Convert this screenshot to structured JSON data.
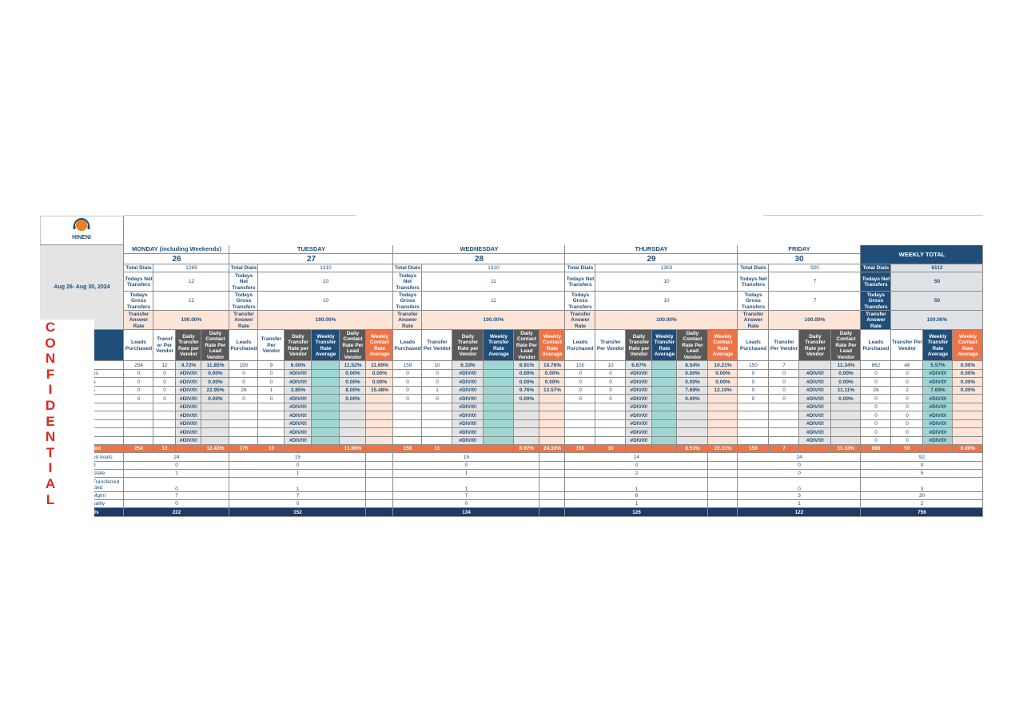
{
  "logo": "HINENI",
  "date_range": "Aug 26- Aug 30, 2024",
  "confidential": "CONFIDENTIAL",
  "metric_labels": [
    "Total Dials",
    "Todays Net Transfers",
    "Todays Gross Transfers",
    "Transfer Answer Rate"
  ],
  "row_labels": [
    null,
    "es",
    "a",
    "s",
    null,
    null,
    null,
    null,
    null,
    null
  ],
  "total_label": "unt",
  "summary_labels": [
    "ed leads",
    "d",
    "lstate",
    "Transferred cted",
    "Mgmt",
    "uality",
    "ds"
  ],
  "days": [
    {
      "name": "MONDAY (including Weekends)",
      "date": 26,
      "total_dials": 1269,
      "net_transfers": 12,
      "gross_transfers": 12,
      "answer_rate": "100.00%",
      "columns": [
        "Leads Purchased",
        "Transf er Per Vendor",
        "Daily Transfer Rate per Vendor",
        "Daily Contact Rate Per Lead Vendor"
      ],
      "rows": [
        [
          254,
          12,
          "4.72%",
          "11.85%"
        ],
        [
          0,
          0,
          "#DIV/0!",
          "0.00%"
        ],
        [
          0,
          0,
          "#DIV/0!",
          "0.00%"
        ],
        [
          0,
          0,
          "#DIV/0!",
          "22.95%"
        ],
        [
          0,
          0,
          "#DIV/0!",
          "0.00%"
        ],
        [
          null,
          null,
          "#DIV/0!",
          null
        ],
        [
          null,
          null,
          "#DIV/0!",
          null
        ],
        [
          null,
          null,
          "#DIV/0!",
          null
        ],
        [
          null,
          null,
          "#DIV/0!",
          null
        ],
        [
          null,
          null,
          "#DIV/0!",
          null
        ]
      ],
      "total": [
        254,
        12,
        null,
        "12.43%"
      ],
      "summary": [
        24,
        0,
        1,
        0,
        7,
        0,
        222
      ]
    },
    {
      "name": "TUESDAY",
      "date": 27,
      "total_dials": 1310,
      "net_transfers": 10,
      "gross_transfers": 10,
      "answer_rate": "100.00%",
      "columns": [
        "Leads Purchased",
        "Transfer Per Vendor",
        "Daily Transfer Rate per Vendor",
        "Weekly Transfer Rate Average",
        "Daily Contact Rate Per Lead Vendor",
        "Weekly Contact Rate Average"
      ],
      "rows": [
        [
          150,
          9,
          "6.00%",
          null,
          "11.52%",
          "11.69%"
        ],
        [
          0,
          0,
          "#DIV/0!",
          null,
          "0.00%",
          "0.00%"
        ],
        [
          0,
          0,
          "#DIV/0!",
          null,
          "0.00%",
          "0.00%"
        ],
        [
          26,
          1,
          "3.85%",
          null,
          "8.00%",
          "15.48%"
        ],
        [
          0,
          0,
          "#DIV/0!",
          null,
          "0.00%",
          null
        ],
        [
          null,
          null,
          "#DIV/0!",
          null,
          null,
          null
        ],
        [
          null,
          null,
          "#DIV/0!",
          null,
          null,
          null
        ],
        [
          null,
          null,
          "#DIV/0!",
          null,
          null,
          null
        ],
        [
          null,
          null,
          "#DIV/0!",
          null,
          null,
          null
        ],
        [
          null,
          null,
          "#DIV/0!",
          null,
          null,
          null
        ]
      ],
      "total": [
        176,
        10,
        null,
        null,
        "11.06%",
        null
      ],
      "summary": [
        15,
        0,
        1,
        1,
        7,
        0,
        152
      ]
    },
    {
      "name": "WEDNESDAY",
      "date": 28,
      "total_dials": 1310,
      "net_transfers": 11,
      "gross_transfers": 11,
      "answer_rate": "100.00%",
      "columns": [
        "Leads Purchased",
        "Transfer Per Vendor",
        "Daily Transfer Rate per Vendor",
        "Weekly Transfer Rate Average",
        "Daily Contact Rate Per Lead Vendor",
        "Weekly Contact Rate Average"
      ],
      "rows": [
        [
          158,
          10,
          "6.33%",
          null,
          "8.91%",
          "10.76%"
        ],
        [
          0,
          0,
          "#DIV/0!",
          null,
          "0.00%",
          "0.00%"
        ],
        [
          0,
          0,
          "#DIV/0!",
          null,
          "0.00%",
          "0.00%"
        ],
        [
          0,
          1,
          "#DIV/0!",
          null,
          "9.76%",
          "13.57%"
        ],
        [
          0,
          0,
          "#DIV/0!",
          null,
          "0.00%",
          null
        ],
        [
          null,
          null,
          "#DIV/0!",
          null,
          null,
          null
        ],
        [
          null,
          null,
          "#DIV/0!",
          null,
          null,
          null
        ],
        [
          null,
          null,
          "#DIV/0!",
          null,
          null,
          null
        ],
        [
          null,
          null,
          "#DIV/0!",
          null,
          null,
          null
        ],
        [
          null,
          null,
          "#DIV/0!",
          null,
          null,
          null
        ]
      ],
      "total": [
        158,
        11,
        null,
        null,
        "8.97%",
        "24.33%"
      ],
      "summary": [
        15,
        0,
        1,
        1,
        7,
        0,
        134
      ]
    },
    {
      "name": "THURSDAY",
      "date": 29,
      "total_dials": 1303,
      "net_transfers": 10,
      "gross_transfers": 10,
      "answer_rate": "100.00%",
      "columns": [
        "Leads Purchased",
        "Transfer Per Vendor",
        "Daily Transfer Rate per Vendor",
        "Weekly Transfer Rate Average",
        "Daily Contact Rate Per Lead Vendor",
        "Weekly Contact Rate Average"
      ],
      "rows": [
        [
          150,
          10,
          "6.67%",
          null,
          "8.54%",
          "10.21%"
        ],
        [
          0,
          0,
          "#DIV/0!",
          null,
          "0.00%",
          "0.00%"
        ],
        [
          0,
          0,
          "#DIV/0!",
          null,
          "0.00%",
          "0.00%"
        ],
        [
          0,
          0,
          "#DIV/0!",
          null,
          "7.69%",
          "12.10%"
        ],
        [
          0,
          0,
          "#DIV/0!",
          null,
          "0.00%",
          null
        ],
        [
          null,
          null,
          "#DIV/0!",
          null,
          null,
          null
        ],
        [
          null,
          null,
          "#DIV/0!",
          null,
          null,
          null
        ],
        [
          null,
          null,
          "#DIV/0!",
          null,
          null,
          null
        ],
        [
          null,
          null,
          "#DIV/0!",
          null,
          null,
          null
        ],
        [
          null,
          null,
          "#DIV/0!",
          null,
          null,
          null
        ]
      ],
      "total": [
        150,
        10,
        null,
        null,
        "8.51%",
        "22.31%"
      ],
      "summary": [
        14,
        0,
        2,
        1,
        6,
        1,
        126
      ]
    },
    {
      "name": "FRIDAY",
      "date": 30,
      "total_dials": 920,
      "net_transfers": 7,
      "gross_transfers": 7,
      "answer_rate": "100.00%",
      "columns": [
        "Leads Purchased",
        "Transfer Per Vendor",
        "Daily Transfer Rate per Vendor",
        "Daily Contact Rate Per Lead Vendor"
      ],
      "rows": [
        [
          150,
          7,
          null,
          "11.34%"
        ],
        [
          0,
          0,
          "#DIV/0!",
          "0.00%"
        ],
        [
          0,
          0,
          "#DIV/0!",
          "0.00%"
        ],
        [
          0,
          0,
          "#DIV/0!",
          "11.11%"
        ],
        [
          0,
          0,
          "#DIV/0!",
          "0.00%"
        ],
        [
          null,
          null,
          "#DIV/0!",
          null
        ],
        [
          null,
          null,
          "#DIV/0!",
          null
        ],
        [
          null,
          null,
          "#DIV/0!",
          null
        ],
        [
          null,
          null,
          "#DIV/0!",
          null
        ],
        [
          null,
          null,
          "#DIV/0!",
          null
        ]
      ],
      "total": [
        150,
        7,
        null,
        "11.33%"
      ],
      "summary": [
        24,
        0,
        0,
        0,
        3,
        1,
        122
      ]
    }
  ],
  "weekly": {
    "name": "WEEKLY TOTAL",
    "total_dials": 6112,
    "net_transfers": 50,
    "gross_transfers": 50,
    "answer_rate": "100.00%",
    "columns": [
      "Leads Purchased",
      "Transfer Per Vendor",
      "Weekly Transfer Rate Average",
      "Weekly Contact Rate Average"
    ],
    "rows": [
      [
        862,
        48,
        "5.57%",
        "0.00%"
      ],
      [
        0,
        0,
        "#DIV/0!",
        "0.00%"
      ],
      [
        0,
        0,
        "#DIV/0!",
        "0.00%"
      ],
      [
        26,
        2,
        "7.69%",
        "0.00%"
      ],
      [
        0,
        0,
        "#DIV/0!",
        null
      ],
      [
        0,
        0,
        "#DIV/0!",
        null
      ],
      [
        0,
        0,
        "#DIV/0!",
        null
      ],
      [
        0,
        0,
        "#DIV/0!",
        null
      ],
      [
        0,
        0,
        "#DIV/0!",
        null
      ],
      [
        0,
        0,
        "#DIV/0!",
        null
      ]
    ],
    "total": [
      888,
      50,
      null,
      "0.00%"
    ],
    "summary": [
      92,
      0,
      5,
      3,
      30,
      2,
      756
    ]
  }
}
